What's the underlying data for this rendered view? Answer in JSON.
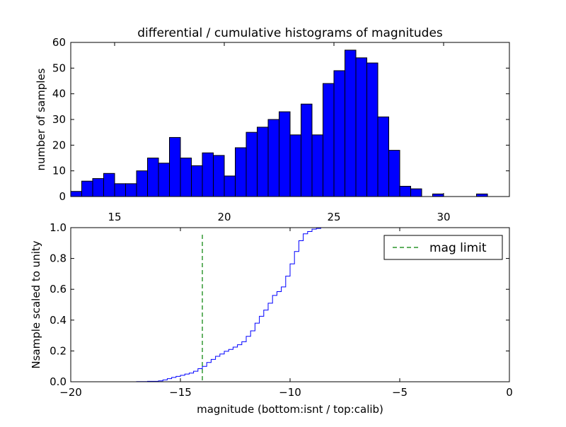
{
  "chart_data": [
    {
      "type": "bar",
      "title": "differential / cumulative histograms of magnitudes",
      "ylabel": "number of samples",
      "xlabel": "",
      "xlim": [
        13.0,
        33.0
      ],
      "ylim": [
        0,
        60
      ],
      "xticks": [
        15,
        20,
        25,
        30
      ],
      "xtick_labels": [
        "15",
        "20",
        "25",
        "30"
      ],
      "yticks": [
        0,
        10,
        20,
        30,
        40,
        50,
        60
      ],
      "ytick_labels": [
        "0",
        "10",
        "20",
        "30",
        "40",
        "50",
        "60"
      ],
      "bar_color": "#0000ff",
      "bin_start": 13.0,
      "bin_width": 0.5,
      "values": [
        2,
        6,
        7,
        9,
        5,
        5,
        10,
        15,
        13,
        23,
        15,
        12,
        17,
        16,
        8,
        19,
        25,
        27,
        30,
        33,
        24,
        36,
        24,
        44,
        49,
        57,
        54,
        52,
        31,
        18,
        4,
        3,
        0,
        1,
        0,
        0,
        0,
        1,
        0,
        0
      ]
    },
    {
      "type": "line",
      "drawstyle": "steps",
      "xlabel": "magnitude (bottom:isnt / top:calib)",
      "ylabel": "Nsample scaled to unity",
      "xlim": [
        -20,
        0
      ],
      "ylim": [
        0.0,
        1.0
      ],
      "xticks": [
        -20,
        -15,
        -10,
        -5,
        0
      ],
      "xtick_labels": [
        "−20",
        "−15",
        "−10",
        "−5",
        "0"
      ],
      "yticks": [
        0.0,
        0.2,
        0.4,
        0.6,
        0.8,
        1.0
      ],
      "ytick_labels": [
        "0.0",
        "0.2",
        "0.4",
        "0.6",
        "0.8",
        "1.0"
      ],
      "line_color": "#0000ff",
      "x": [
        -20.0,
        -17.0,
        -16.5,
        -16.0,
        -15.8,
        -15.6,
        -15.4,
        -15.2,
        -15.0,
        -14.8,
        -14.6,
        -14.4,
        -14.2,
        -14.0,
        -13.8,
        -13.6,
        -13.4,
        -13.2,
        -13.0,
        -12.8,
        -12.6,
        -12.4,
        -12.2,
        -12.0,
        -11.8,
        -11.6,
        -11.4,
        -11.2,
        -11.0,
        -10.8,
        -10.6,
        -10.4,
        -10.2,
        -10.0,
        -9.8,
        -9.6,
        -9.4,
        -9.2,
        -9.0,
        -8.8,
        -8.6,
        -8.4,
        -8.2,
        -8.0,
        -7.0,
        0.0
      ],
      "y": [
        0.0,
        0.001,
        0.003,
        0.006,
        0.012,
        0.02,
        0.028,
        0.035,
        0.042,
        0.05,
        0.056,
        0.068,
        0.085,
        0.1,
        0.125,
        0.145,
        0.165,
        0.18,
        0.198,
        0.21,
        0.225,
        0.24,
        0.26,
        0.295,
        0.33,
        0.38,
        0.425,
        0.465,
        0.51,
        0.56,
        0.585,
        0.615,
        0.685,
        0.765,
        0.845,
        0.915,
        0.96,
        0.975,
        0.99,
        0.995,
        1.0,
        1.0,
        1.0,
        1.0,
        1.0,
        1.0
      ],
      "vline": {
        "x": -14.0,
        "label": "mag limit",
        "color": "#008000",
        "style": "dashed"
      },
      "legend": {
        "position": "top-right",
        "entries": [
          "mag limit"
        ]
      }
    }
  ]
}
